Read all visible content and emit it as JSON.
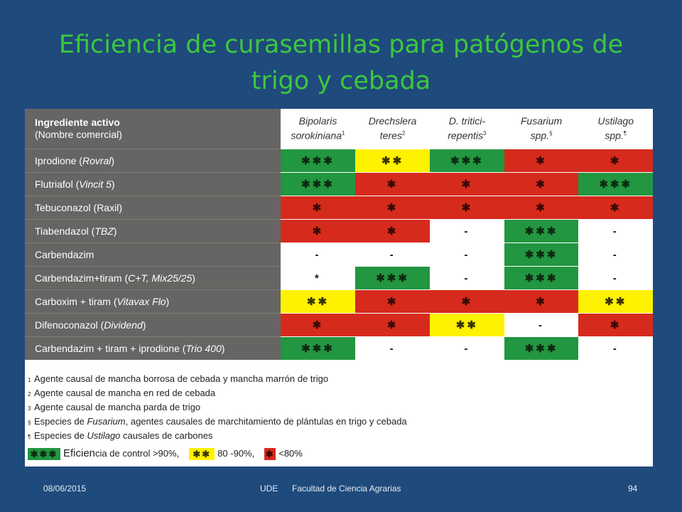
{
  "slide": {
    "title_line1": "Eficiencia de curasemillas para patógenos de",
    "title_line2": "trigo y cebada"
  },
  "table": {
    "header": {
      "ingredient_line1": "Ingrediente activo",
      "ingredient_line2": "(Nombre comercial)",
      "pathogens": [
        {
          "line1": "Bipolaris",
          "line2": "sorokiniana",
          "mark": "1"
        },
        {
          "line1": "Drechslera",
          "line2": "teres",
          "mark": "2"
        },
        {
          "line1": "D. tritici-",
          "line2": "repentis",
          "mark": "3"
        },
        {
          "line1": "Fusarium",
          "line2": "spp.",
          "mark": "§"
        },
        {
          "line1": "Ustilago",
          "line2": "spp.",
          "mark": "¶"
        }
      ]
    },
    "rows": [
      {
        "name": "Iprodione",
        "brand": "Rovral",
        "cells": [
          {
            "text": "✱✱✱",
            "level": "g"
          },
          {
            "text": "✱✱",
            "level": "y"
          },
          {
            "text": "✱✱✱",
            "level": "g"
          },
          {
            "text": "✱",
            "level": "r"
          },
          {
            "text": "✱",
            "level": "r"
          }
        ]
      },
      {
        "name": "Flutriafol",
        "brand": "Vincit 5",
        "cells": [
          {
            "text": "✱✱✱",
            "level": "g"
          },
          {
            "text": "✱",
            "level": "r"
          },
          {
            "text": "✱",
            "level": "r"
          },
          {
            "text": "✱",
            "level": "r"
          },
          {
            "text": "✱✱✱",
            "level": "g"
          }
        ]
      },
      {
        "name": "Tebuconazol",
        "brand": "Raxil",
        "brand_style": "normal",
        "cells": [
          {
            "text": "✱",
            "level": "r"
          },
          {
            "text": "✱",
            "level": "r"
          },
          {
            "text": "✱",
            "level": "r"
          },
          {
            "text": "✱",
            "level": "r"
          },
          {
            "text": "✱",
            "level": "r"
          }
        ]
      },
      {
        "name": "Tiabendazol",
        "brand": "TBZ",
        "cells": [
          {
            "text": "✱",
            "level": "r"
          },
          {
            "text": "✱",
            "level": "r"
          },
          {
            "text": "-",
            "level": "w"
          },
          {
            "text": "✱✱✱",
            "level": "g"
          },
          {
            "text": "-",
            "level": "w"
          }
        ]
      },
      {
        "name": "Carbendazim",
        "brand": "",
        "cells": [
          {
            "text": "-",
            "level": "w"
          },
          {
            "text": "-",
            "level": "w"
          },
          {
            "text": "-",
            "level": "w"
          },
          {
            "text": "✱✱✱",
            "level": "g"
          },
          {
            "text": "-",
            "level": "w"
          }
        ]
      },
      {
        "name": "Carbendazim+tiram",
        "brand": "C+T, Mix25/25",
        "cells": [
          {
            "text": "*",
            "level": "w"
          },
          {
            "text": "✱✱✱",
            "level": "g"
          },
          {
            "text": "-",
            "level": "w"
          },
          {
            "text": "✱✱✱",
            "level": "g"
          },
          {
            "text": "-",
            "level": "w"
          }
        ]
      },
      {
        "name": "Carboxim + tiram",
        "brand": "Vitavax Flo",
        "cells": [
          {
            "text": "✱✱",
            "level": "y"
          },
          {
            "text": "✱",
            "level": "r"
          },
          {
            "text": "✱",
            "level": "r"
          },
          {
            "text": "✱",
            "level": "r"
          },
          {
            "text": "✱✱",
            "level": "y"
          }
        ]
      },
      {
        "name": "Difenoconazol",
        "brand": "Dividend",
        "cells": [
          {
            "text": "✱",
            "level": "r"
          },
          {
            "text": "✱",
            "level": "r"
          },
          {
            "text": "✱✱",
            "level": "y"
          },
          {
            "text": "-",
            "level": "w"
          },
          {
            "text": "✱",
            "level": "r"
          }
        ]
      },
      {
        "name": "Carbendazim + tiram + iprodione",
        "brand": "Trio 400",
        "cells": [
          {
            "text": "✱✱✱",
            "level": "g"
          },
          {
            "text": "-",
            "level": "w"
          },
          {
            "text": "-",
            "level": "w"
          },
          {
            "text": "✱✱✱",
            "level": "g"
          },
          {
            "text": "-",
            "level": "w"
          }
        ]
      }
    ]
  },
  "footnotes": [
    {
      "mark": "1",
      "parts": [
        {
          "t": "Agente causal de mancha borrosa de cebada y mancha marrón de trigo"
        }
      ]
    },
    {
      "mark": "2",
      "parts": [
        {
          "t": "Agente causal de mancha en red de cebada"
        }
      ]
    },
    {
      "mark": "3",
      "parts": [
        {
          "t": "Agente causal de mancha parda de trigo"
        }
      ]
    },
    {
      "mark": "§",
      "parts": [
        {
          "t": "Especies de "
        },
        {
          "t": "Fusarium",
          "i": true
        },
        {
          "t": ", agentes causales de marchitamiento de plántulas en trigo y cebada"
        }
      ]
    },
    {
      "mark": "¶",
      "parts": [
        {
          "t": "Especies de "
        },
        {
          "t": "Ustilago",
          "i": true
        },
        {
          "t": " causales de carbones"
        }
      ]
    }
  ],
  "legend": [
    {
      "symbol": "✱✱✱",
      "level": "g",
      "label_big": "Eficien",
      "label": "cia de control >90%,"
    },
    {
      "symbol": "✱✱",
      "level": "y",
      "label_big": "",
      "label": "80 -90%,"
    },
    {
      "symbol": "✱",
      "level": "r",
      "label_big": "",
      "label": "<80%"
    }
  ],
  "colors": {
    "g": "#229640",
    "y": "#fff200",
    "r": "#d62a1c",
    "w": "#ffffff"
  },
  "footer": {
    "date": "08/06/2015",
    "org": "UDE",
    "faculty": "Facultad de Ciencia Agrarias",
    "page": "94"
  }
}
